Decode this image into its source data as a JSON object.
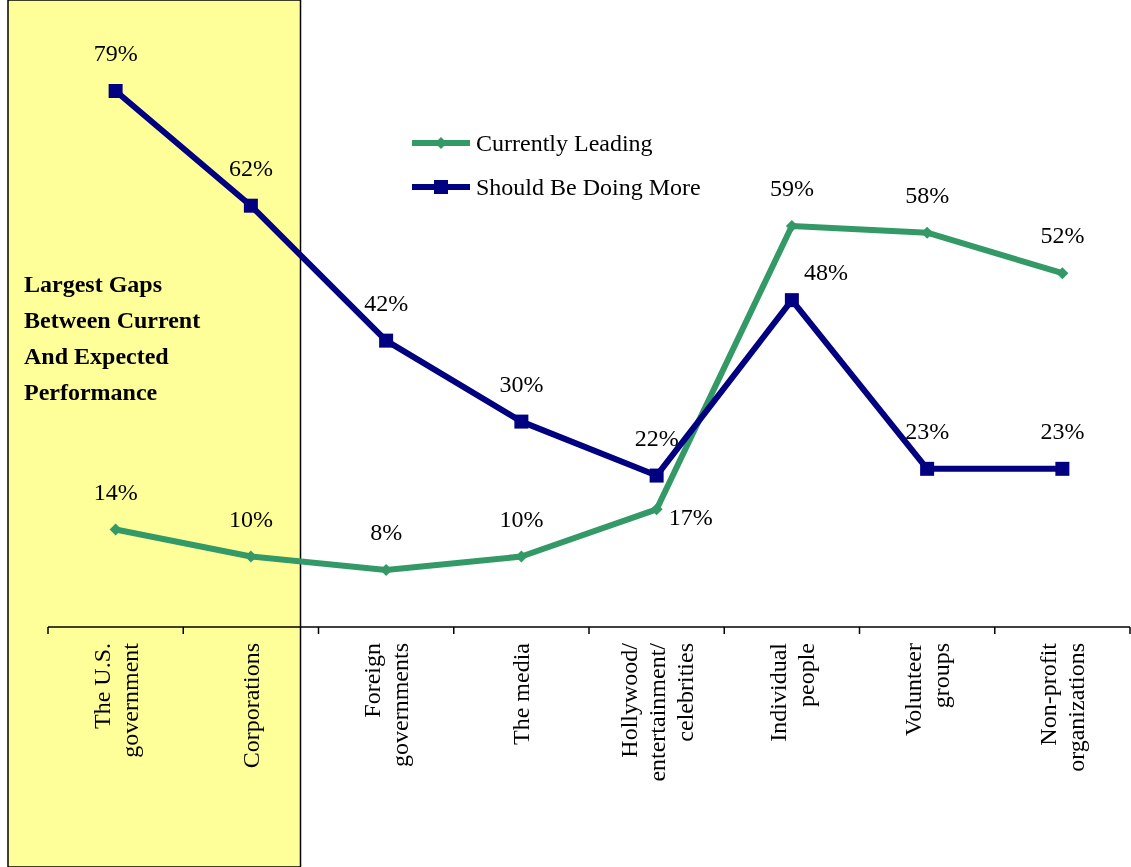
{
  "chart_data": {
    "type": "line",
    "categories": [
      "The U.S. government",
      "Corporations",
      "Foreign governments",
      "The media",
      "Hollywood/ entertainment/ celebrities",
      "Individual people",
      "Volunteer groups",
      "Non-profit organizations"
    ],
    "series": [
      {
        "name": "Currently Leading",
        "color": "#339966",
        "marker": "diamond",
        "values": [
          14,
          10,
          8,
          10,
          17,
          59,
          58,
          52
        ],
        "value_labels": [
          "14%",
          "10%",
          "8%",
          "10%",
          "17%",
          "59%",
          "58%",
          "52%"
        ]
      },
      {
        "name": "Should Be Doing More",
        "color": "#000080",
        "marker": "square",
        "values": [
          79,
          62,
          42,
          30,
          22,
          48,
          23,
          23
        ],
        "value_labels": [
          "79%",
          "62%",
          "42%",
          "30%",
          "22%",
          "48%",
          "23%",
          "23%"
        ]
      }
    ],
    "bands": [
      {
        "axis": "x",
        "from": "The U.S. government",
        "to": "Corporations",
        "label": "Largest Gaps Between Current And Expected Performance",
        "color": "#ffff99"
      }
    ],
    "legend": "top"
  }
}
